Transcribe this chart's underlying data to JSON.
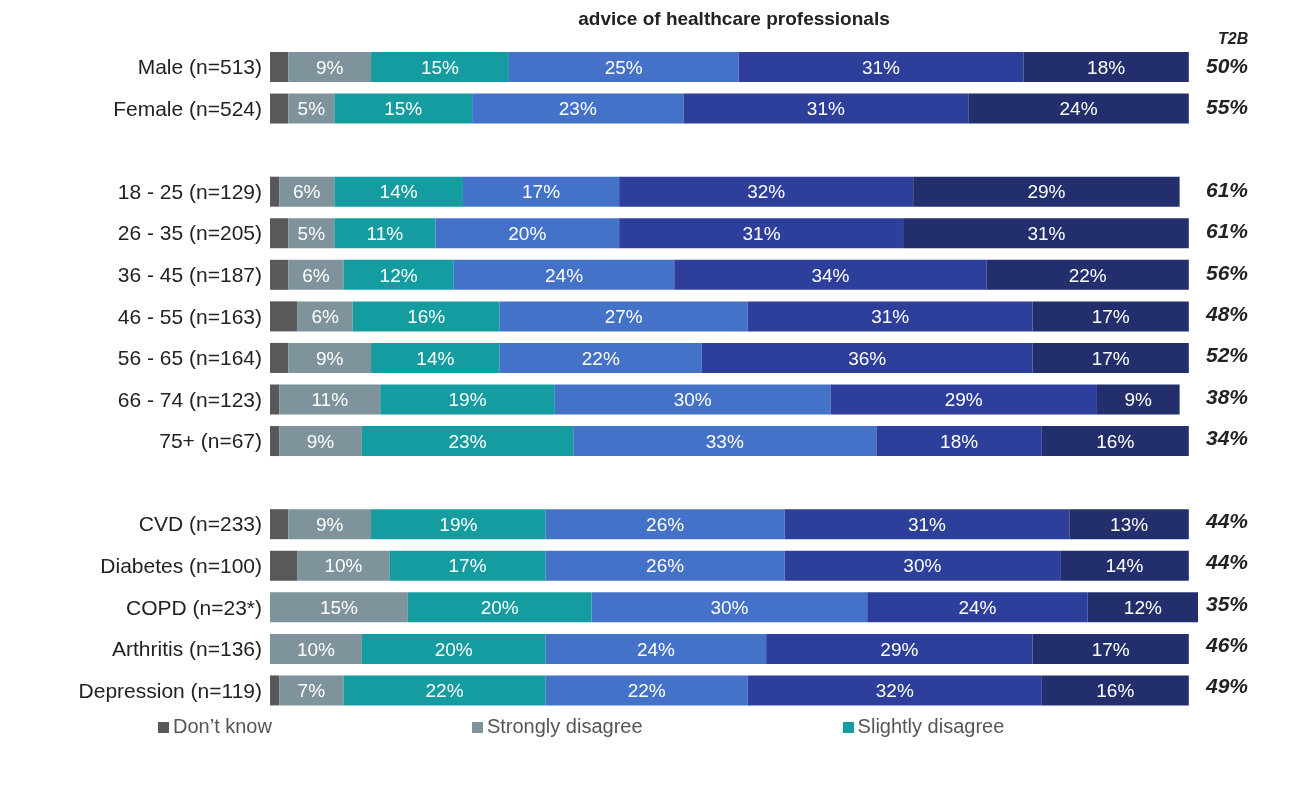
{
  "chart_data": {
    "type": "bar",
    "orientation": "horizontal",
    "stacked": true,
    "title": "advice of healthcare professionals",
    "categories": [
      "Male (n=513)",
      "Female (n=524)",
      null,
      "18 - 25 (n=129)",
      "26 - 35 (n=205)",
      "36 - 45 (n=187)",
      "46 - 55 (n=163)",
      "56 - 65 (n=164)",
      "66 - 74 (n=123)",
      "75+ (n=67)",
      null,
      "CVD (n=233)",
      "Diabetes (n=100)",
      "COPD (n=23*)",
      "Arthritis (n=136)",
      "Depression (n=119)"
    ],
    "series": [
      {
        "name": "Don’t know",
        "color": "#595959",
        "values": [
          2,
          2,
          null,
          1,
          2,
          2,
          3,
          2,
          1,
          1,
          null,
          2,
          3,
          0,
          0,
          1
        ],
        "value_labels": [
          null,
          null,
          null,
          null,
          null,
          null,
          null,
          null,
          null,
          null,
          null,
          null,
          null,
          null,
          null,
          null
        ]
      },
      {
        "name": "Strongly disagree",
        "color": "#7f939c",
        "values": [
          9,
          5,
          null,
          6,
          5,
          6,
          6,
          9,
          11,
          9,
          null,
          9,
          10,
          15,
          10,
          7
        ],
        "value_labels": [
          "9%",
          "5%",
          null,
          "6%",
          "5%",
          "6%",
          "6%",
          "9%",
          "11%",
          "9%",
          null,
          "9%",
          "10%",
          "15%",
          "10%",
          "7%"
        ]
      },
      {
        "name": "Slightly disagree",
        "color": "#159ca0",
        "values": [
          15,
          15,
          null,
          14,
          11,
          12,
          16,
          14,
          19,
          23,
          null,
          19,
          17,
          20,
          20,
          22
        ],
        "value_labels": [
          "15%",
          "15%",
          null,
          "14%",
          "11%",
          "12%",
          "16%",
          "14%",
          "19%",
          "23%",
          null,
          "19%",
          "17%",
          "20%",
          "20%",
          "22%"
        ]
      },
      {
        "color": "#4472c8",
        "values": [
          25,
          23,
          null,
          17,
          20,
          24,
          27,
          22,
          30,
          33,
          null,
          26,
          26,
          30,
          24,
          22
        ],
        "value_labels": [
          "25%",
          "23%",
          null,
          "17%",
          "20%",
          "24%",
          "27%",
          "22%",
          "30%",
          "33%",
          null,
          "26%",
          "26%",
          "30%",
          "24%",
          "22%"
        ]
      },
      {
        "color": "#2e3f9b",
        "values": [
          31,
          31,
          null,
          32,
          31,
          34,
          31,
          36,
          29,
          18,
          null,
          31,
          30,
          24,
          29,
          32
        ],
        "value_labels": [
          "31%",
          "31%",
          null,
          "32%",
          "31%",
          "34%",
          "31%",
          "36%",
          "29%",
          "18%",
          null,
          "31%",
          "30%",
          "24%",
          "29%",
          "32%"
        ]
      },
      {
        "color": "#232f6c",
        "values": [
          18,
          24,
          null,
          29,
          31,
          22,
          17,
          17,
          9,
          16,
          null,
          13,
          14,
          12,
          17,
          16
        ],
        "value_labels": [
          "18%",
          "24%",
          null,
          "29%",
          "31%",
          "22%",
          "17%",
          "17%",
          "9%",
          "16%",
          null,
          "13%",
          "14%",
          "12%",
          "17%",
          "16%"
        ]
      }
    ],
    "tick_labels": "y",
    "legend": "bottom",
    "annotations": [
      "T2B",
      "50%",
      "55%",
      "61%",
      "61%",
      "56%",
      "48%",
      "52%",
      "38%",
      "34%",
      "44%",
      "44%",
      "35%",
      "46%",
      "49%"
    ]
  }
}
